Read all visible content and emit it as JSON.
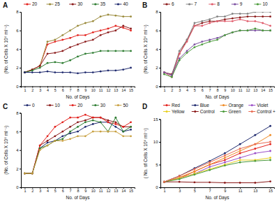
{
  "chart_data": [
    {
      "type": "line",
      "title": "A",
      "x_label": "No. of Days",
      "y_label": "(No. of Cells X 10⁶ ml⁻¹)",
      "marker": "circle",
      "x": [
        1,
        2,
        3,
        4,
        5,
        6,
        7,
        8,
        9,
        10,
        11,
        12,
        13,
        14,
        15
      ],
      "xlim": [
        0.5,
        15.5
      ],
      "xticks": [
        1,
        2,
        3,
        4,
        5,
        6,
        7,
        8,
        9,
        10,
        11,
        12,
        13,
        14,
        15
      ],
      "ylim": [
        0,
        8
      ],
      "yticks": [
        0,
        2,
        4,
        6,
        8
      ],
      "series": [
        {
          "name": "20",
          "color": "#e3211c",
          "values": [
            1.5,
            1.8,
            2.2,
            4.5,
            4.8,
            5.0,
            5.2,
            5.5,
            5.5,
            5.8,
            6.0,
            6.2,
            6.5,
            6.3,
            6.0
          ]
        },
        {
          "name": "25",
          "color": "#9a8a3a",
          "values": [
            1.5,
            1.8,
            2.2,
            4.8,
            5.0,
            5.5,
            6.0,
            6.5,
            6.8,
            7.0,
            7.5,
            7.7,
            7.6,
            7.5,
            7.5
          ]
        },
        {
          "name": "30",
          "color": "#8b1a1a",
          "values": [
            1.5,
            1.8,
            2.2,
            3.5,
            3.6,
            3.8,
            4.2,
            4.5,
            4.8,
            5.0,
            5.5,
            5.8,
            6.0,
            6.5,
            6.2
          ]
        },
        {
          "name": "35",
          "color": "#2e7d32",
          "values": [
            1.5,
            1.7,
            2.0,
            2.5,
            2.6,
            2.5,
            2.8,
            3.2,
            3.5,
            3.6,
            3.8,
            3.8,
            3.8,
            3.8,
            3.8
          ]
        },
        {
          "name": "40",
          "color": "#1f2a6e",
          "values": [
            1.5,
            1.5,
            1.5,
            1.6,
            1.5,
            1.5,
            1.5,
            1.4,
            1.5,
            1.5,
            1.6,
            1.7,
            1.7,
            1.8,
            2.0
          ]
        }
      ]
    },
    {
      "type": "line",
      "title": "B",
      "x_label": "No. of Days",
      "y_label": "(No. of Cells X 10⁶ ml⁻¹)",
      "marker": "circle",
      "x": [
        1,
        2,
        3,
        4,
        5,
        6,
        7,
        8,
        9,
        10,
        11,
        12,
        13,
        14,
        15
      ],
      "xlim": [
        0.5,
        15.5
      ],
      "xticks": [
        1,
        2,
        3,
        4,
        5,
        6,
        7,
        8,
        9,
        10,
        11,
        12,
        13,
        14,
        15
      ],
      "ylim": [
        0,
        8
      ],
      "yticks": [
        0,
        2,
        4,
        6,
        8
      ],
      "series": [
        {
          "name": "6",
          "color": "#8b1a1a",
          "values": [
            1.5,
            1.3,
            3.5,
            5.0,
            6.5,
            6.8,
            7.0,
            7.0,
            7.2,
            7.3,
            7.4,
            7.5,
            7.5,
            7.5,
            7.5
          ]
        },
        {
          "name": "7",
          "color": "#808080",
          "values": [
            1.5,
            1.2,
            3.8,
            5.0,
            6.8,
            7.0,
            7.2,
            7.5,
            7.5,
            7.8,
            7.8,
            7.8,
            8.0,
            8.0,
            8.0
          ]
        },
        {
          "name": "8",
          "color": "#e05a6a",
          "values": [
            1.5,
            1.0,
            3.5,
            4.8,
            6.5,
            6.5,
            6.8,
            7.0,
            7.0,
            7.0,
            7.2,
            7.0,
            7.0,
            6.8,
            6.5
          ]
        },
        {
          "name": "9",
          "color": "#7b4fa0",
          "values": [
            1.5,
            1.2,
            3.0,
            3.8,
            4.5,
            4.8,
            5.0,
            5.2,
            5.5,
            5.8,
            6.0,
            6.0,
            6.0,
            6.0,
            6.0
          ]
        },
        {
          "name": "10",
          "color": "#4a9a3a",
          "values": [
            1.3,
            1.0,
            2.8,
            3.6,
            4.2,
            4.5,
            4.8,
            5.0,
            5.5,
            5.8,
            6.0,
            6.0,
            6.2,
            6.0,
            6.0
          ]
        }
      ]
    },
    {
      "type": "line",
      "title": "C",
      "x_label": "No. of Days",
      "y_label": "(No. of Cells X 10⁶ ml⁻¹)",
      "marker": "circle",
      "x": [
        1,
        2,
        3,
        4,
        5,
        6,
        7,
        8,
        9,
        10,
        11,
        12,
        13,
        14,
        15
      ],
      "xlim": [
        0.5,
        15.5
      ],
      "xticks": [
        1,
        2,
        3,
        4,
        5,
        6,
        7,
        8,
        9,
        10,
        11,
        12,
        13,
        14,
        15
      ],
      "ylim": [
        0,
        8
      ],
      "yticks": [
        0,
        2,
        4,
        6,
        8
      ],
      "series": [
        {
          "name": "0",
          "color": "#1f2a6e",
          "values": [
            1.5,
            1.5,
            4.2,
            4.8,
            5.0,
            5.5,
            5.8,
            6.0,
            6.5,
            6.8,
            7.0,
            7.0,
            6.5,
            6.0,
            6.2
          ]
        },
        {
          "name": "10",
          "color": "#8b1a1a",
          "values": [
            1.5,
            1.5,
            4.5,
            5.0,
            5.5,
            6.0,
            6.5,
            7.0,
            7.2,
            7.5,
            7.5,
            7.2,
            7.0,
            6.5,
            6.5
          ]
        },
        {
          "name": "20",
          "color": "#e3211c",
          "values": [
            1.5,
            1.5,
            4.5,
            5.5,
            6.5,
            7.0,
            7.5,
            7.5,
            7.8,
            7.5,
            7.5,
            7.0,
            6.8,
            6.5,
            7.0
          ]
        },
        {
          "name": "30",
          "color": "#2e7d32",
          "values": [
            1.5,
            1.5,
            4.2,
            4.5,
            5.0,
            5.2,
            6.0,
            6.5,
            7.0,
            7.2,
            7.0,
            6.0,
            7.5,
            6.0,
            6.5
          ]
        },
        {
          "name": "50",
          "color": "#c8a040",
          "values": [
            1.5,
            1.5,
            4.0,
            4.5,
            5.0,
            5.0,
            5.2,
            5.5,
            5.5,
            6.0,
            6.0,
            6.0,
            6.0,
            5.5,
            5.5
          ]
        }
      ]
    },
    {
      "type": "line",
      "title": "D",
      "x_label": "No. of Days",
      "y_label": "( No. of Cells X 10⁶ ml⁻¹)",
      "marker": "circle",
      "x": [
        1,
        3,
        5,
        7,
        9,
        11,
        13,
        15
      ],
      "xlim": [
        0.5,
        15.5
      ],
      "xticks": [
        1,
        3,
        5,
        7,
        9,
        11,
        13,
        15
      ],
      "ylim": [
        0,
        15
      ],
      "yticks": [
        0,
        5,
        10,
        15
      ],
      "series": [
        {
          "name": "Red",
          "color": "#e3211c",
          "values": [
            1.2,
            2.0,
            3.5,
            5.0,
            6.0,
            7.5,
            8.5,
            9.5
          ]
        },
        {
          "name": "Blue",
          "color": "#1f2a6e",
          "values": [
            1.2,
            2.5,
            4.2,
            5.8,
            7.5,
            9.5,
            11.5,
            13.5
          ]
        },
        {
          "name": "Orange",
          "color": "#f08a24",
          "values": [
            1.2,
            2.2,
            3.5,
            5.0,
            6.5,
            8.0,
            9.5,
            11.5
          ]
        },
        {
          "name": "Violet",
          "color": "#9b4fc8",
          "values": [
            1.2,
            2.0,
            3.0,
            4.5,
            5.5,
            6.5,
            7.5,
            8.0
          ]
        },
        {
          "name": "Yellow",
          "color": "#e8d020",
          "values": [
            1.2,
            2.0,
            3.0,
            4.0,
            5.0,
            6.0,
            6.0,
            6.5
          ]
        },
        {
          "name": "Control",
          "color": "#8b1a1a",
          "values": [
            1.2,
            1.2,
            1.1,
            1.1,
            1.0,
            1.0,
            1.0,
            1.3
          ]
        },
        {
          "name": "Green",
          "color": "#4a9a3a",
          "values": [
            1.2,
            1.8,
            2.8,
            3.8,
            4.8,
            5.5,
            5.8,
            6.0
          ]
        },
        {
          "name": "Control +",
          "color": "#e86a50",
          "values": [
            1.2,
            2.5,
            4.0,
            5.5,
            7.0,
            8.5,
            9.5,
            10.0
          ]
        }
      ]
    }
  ]
}
